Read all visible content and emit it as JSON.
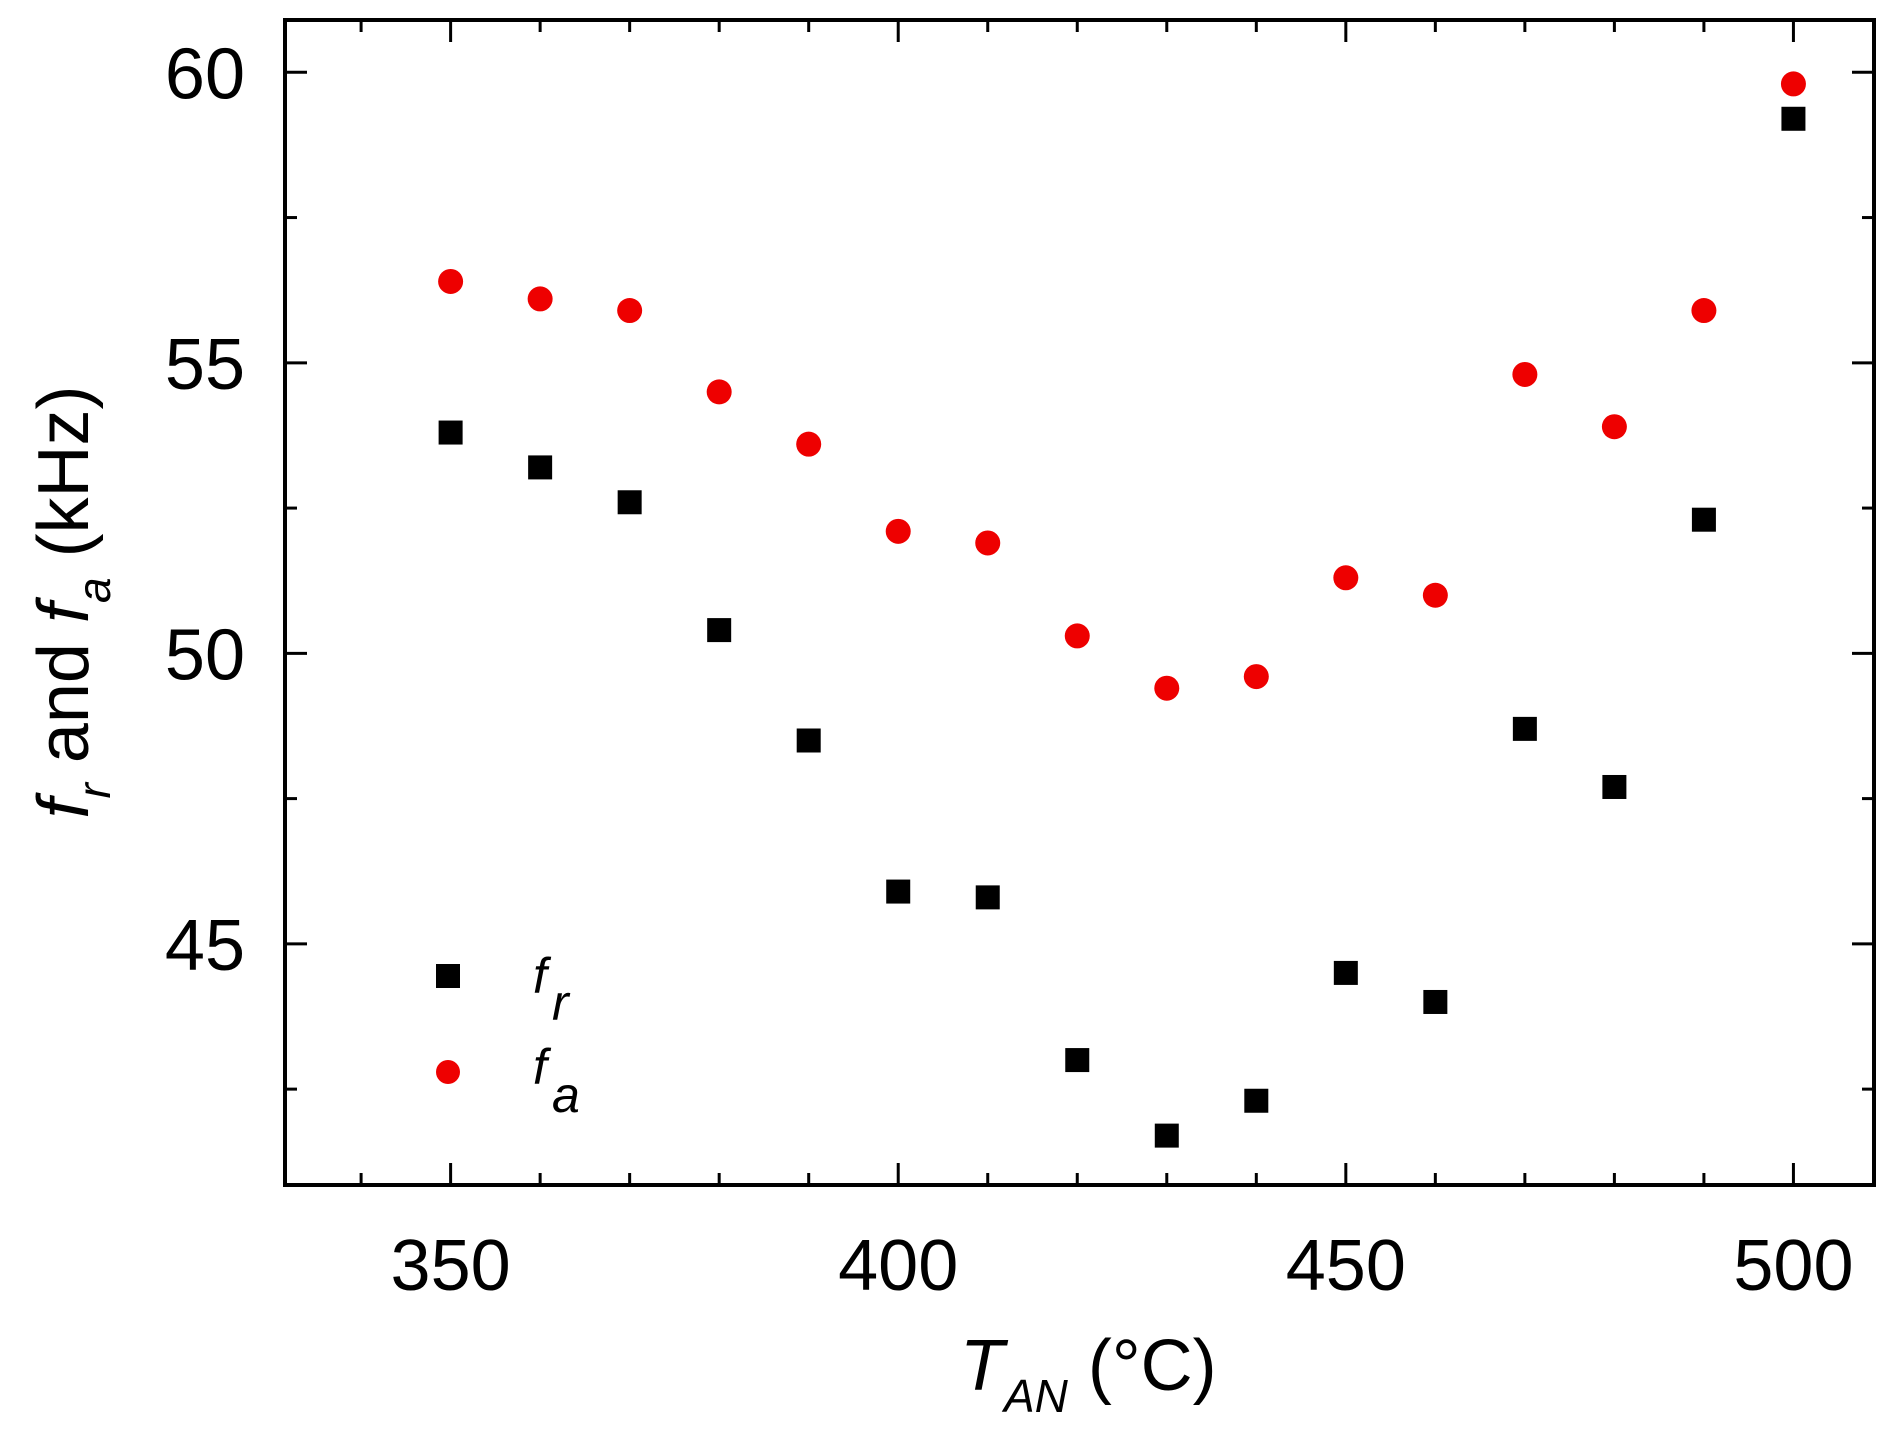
{
  "chart_data": {
    "type": "scatter",
    "title": "",
    "xlabel": {
      "main": "T",
      "sub": "AN",
      "unit": " (°C)"
    },
    "ylabel": {
      "f1": "f",
      "sub1": "r",
      "mid": " and ",
      "f2": "f",
      "sub2": "a",
      "unit": " (kHz)"
    },
    "xlim": [
      331.5,
      509
    ],
    "ylim": [
      40.85,
      60.9
    ],
    "xticks": [
      350,
      400,
      450,
      500
    ],
    "xtick_labels": [
      "350",
      "400",
      "450",
      "500"
    ],
    "xminor": [
      340,
      360,
      370,
      380,
      390,
      410,
      420,
      430,
      440,
      460,
      470,
      480,
      490
    ],
    "yticks": [
      45,
      50,
      55,
      60
    ],
    "ytick_labels": [
      "45",
      "50",
      "55",
      "60"
    ],
    "yminor": [
      42.5,
      47.5,
      52.5,
      57.5
    ],
    "grid": false,
    "legend_position": "lower-left",
    "series": [
      {
        "name": "f_r",
        "label": "f",
        "label_sub": "r",
        "marker": "square",
        "color": "#000000",
        "x": [
          350,
          360,
          370,
          380,
          390,
          400,
          410,
          420,
          430,
          440,
          450,
          460,
          470,
          480,
          490,
          500
        ],
        "y": [
          53.8,
          53.2,
          52.6,
          50.4,
          48.5,
          45.9,
          45.8,
          43.0,
          41.7,
          42.3,
          44.5,
          44.0,
          48.7,
          47.7,
          52.3,
          59.2
        ]
      },
      {
        "name": "f_a",
        "label": "f",
        "label_sub": "a",
        "marker": "circle",
        "color": "#ee0000",
        "x": [
          350,
          360,
          370,
          380,
          390,
          400,
          410,
          420,
          430,
          440,
          450,
          460,
          470,
          480,
          490,
          500
        ],
        "y": [
          56.4,
          56.1,
          55.9,
          54.5,
          53.6,
          52.1,
          51.9,
          50.3,
          49.4,
          49.6,
          51.3,
          51.0,
          54.8,
          53.9,
          55.9,
          59.8
        ]
      }
    ]
  }
}
